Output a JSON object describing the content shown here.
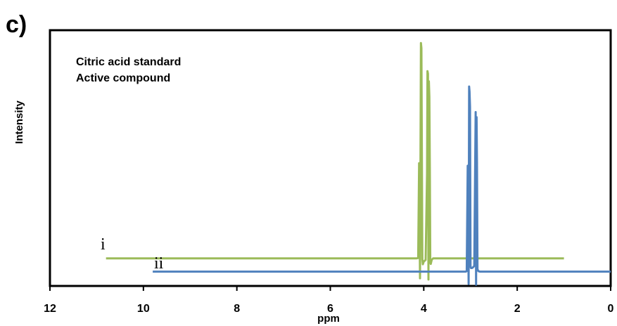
{
  "panel_label": "c)",
  "chart_data": {
    "type": "line",
    "xlabel": "ppm",
    "ylabel": "Intensity",
    "xlim": [
      12,
      0
    ],
    "x_reversed": true,
    "ylim": [
      0,
      100
    ],
    "x_ticks": [
      12,
      10,
      8,
      6,
      4,
      2,
      0
    ],
    "x_tick_labels": [
      "12",
      "10",
      "8",
      "6",
      "4",
      "2",
      "0"
    ],
    "grid": false,
    "legend_position": "top-left",
    "legend_text": [
      "Citric acid standard",
      "Active compound"
    ],
    "trace_labels": [
      "i",
      "ii"
    ],
    "series": [
      {
        "label": "i",
        "color": "#9bbb59",
        "x": [
          10.8,
          5.0,
          4.6,
          4.15,
          4.12,
          4.1,
          4.08,
          4.06,
          4.05,
          4.03,
          4.02,
          4.0,
          3.96,
          3.93,
          3.92,
          3.91,
          3.9,
          3.89,
          3.88,
          3.87,
          3.86,
          3.85,
          3.83,
          3.8,
          3.2,
          1.0
        ],
        "y": [
          10.8,
          10.8,
          10.8,
          10.8,
          10.9,
          48.0,
          3.0,
          95.0,
          93.0,
          10.5,
          8.5,
          9.5,
          10.2,
          44.0,
          84.0,
          83.0,
          2.5,
          80.0,
          74.0,
          45.0,
          9.5,
          8.6,
          10.2,
          10.8,
          10.8,
          10.8
        ]
      },
      {
        "label": "ii",
        "color": "#4f81bd",
        "x": [
          9.8,
          4.0,
          3.5,
          3.1,
          3.08,
          3.06,
          3.04,
          3.03,
          3.02,
          3.01,
          3.0,
          2.99,
          2.97,
          2.95,
          2.92,
          2.9,
          2.89,
          2.88,
          2.87,
          2.86,
          2.85,
          2.83,
          2.8,
          2.5,
          0.0
        ],
        "y": [
          5.6,
          5.6,
          5.6,
          5.6,
          5.8,
          47.0,
          0.8,
          78.0,
          76.0,
          70.0,
          7.8,
          7.0,
          7.0,
          7.2,
          7.8,
          47.0,
          68.0,
          0.5,
          66.0,
          48.0,
          6.5,
          5.8,
          5.6,
          5.6,
          5.6
        ]
      }
    ]
  }
}
